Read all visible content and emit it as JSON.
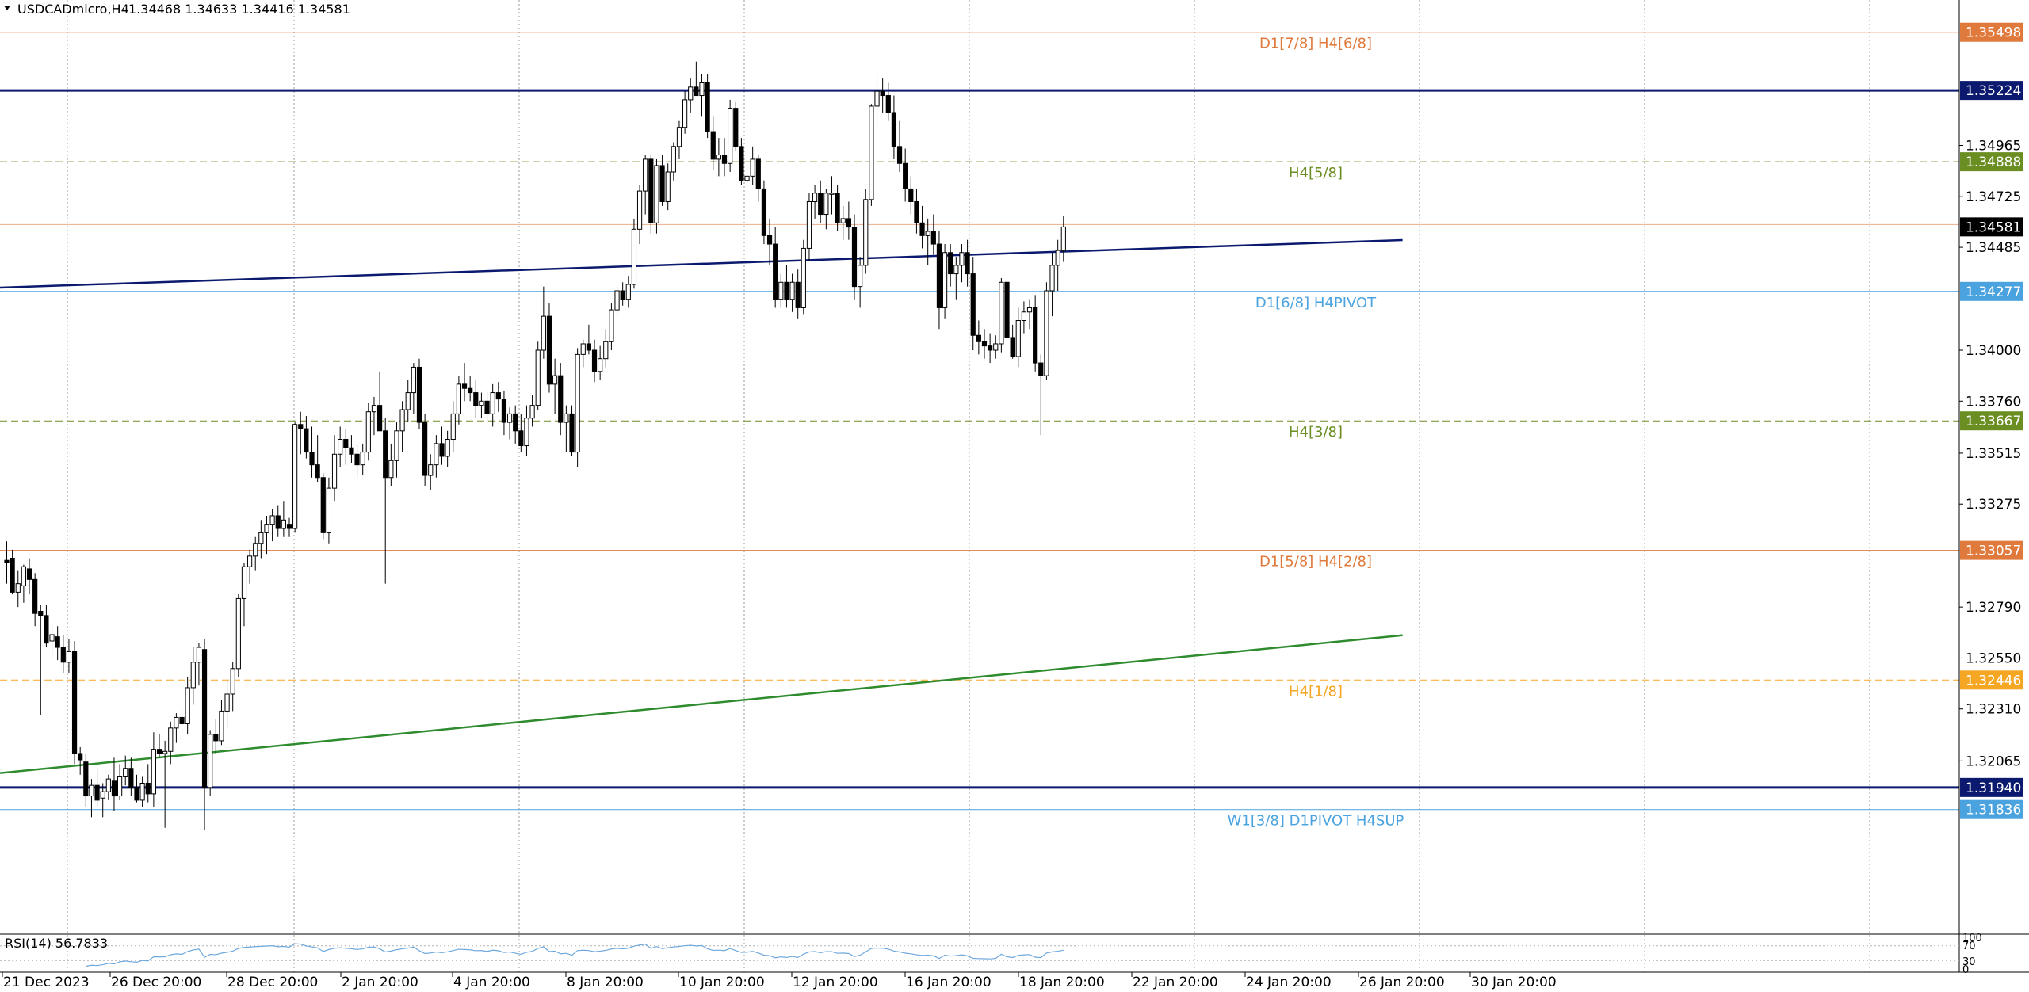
{
  "header": {
    "symbol_timeframe": "USDCADmicro,H4",
    "ohlc": "1.34468 1.34633 1.34416 1.34581"
  },
  "chart_data": {
    "type": "candlestick",
    "symbol": "USDCADmicro",
    "timeframe": "H4",
    "ylim": [
      1.3126,
      1.3565
    ],
    "price_ticks": [
      "1.34965",
      "1.34725",
      "1.34485",
      "1.34000",
      "1.33760",
      "1.33515",
      "1.33275",
      "1.32790",
      "1.32550",
      "1.32310",
      "1.32065"
    ],
    "x_labels": [
      "21 Dec 2023",
      "26 Dec 20:00",
      "28 Dec 20:00",
      "2 Jan 20:00",
      "4 Jan 20:00",
      "8 Jan 20:00",
      "10 Jan 20:00",
      "12 Jan 20:00",
      "16 Jan 20:00",
      "18 Jan 20:00",
      "22 Jan 20:00",
      "24 Jan 20:00",
      "26 Jan 20:00",
      "30 Jan 20:00"
    ],
    "level_lines": [
      {
        "price": 1.35498,
        "label": "1.35498",
        "text": "D1[7/8] H4[6/8]",
        "color": "#e07a3c",
        "style": "solid",
        "width": 1
      },
      {
        "price": 1.35224,
        "label": "1.35224",
        "text": "",
        "color": "#0b1a6e",
        "style": "solid",
        "width": 3
      },
      {
        "price": 1.34888,
        "label": "1.34888",
        "text": "H4[5/8]",
        "color": "#6b8e23",
        "style": "dashed",
        "width": 1
      },
      {
        "price": 1.34277,
        "label": "1.34277",
        "text": "D1[6/8] H4PIVOT",
        "color": "#4aa3df",
        "style": "solid",
        "width": 1
      },
      {
        "price": 1.33667,
        "label": "1.33667",
        "text": "H4[3/8]",
        "color": "#6b8e23",
        "style": "dashed",
        "width": 1
      },
      {
        "price": 1.33057,
        "label": "1.33057",
        "text": "D1[5/8] H4[2/8]",
        "color": "#e07a3c",
        "style": "solid",
        "width": 1
      },
      {
        "price": 1.32446,
        "label": "1.32446",
        "text": "H4[1/8]",
        "color": "#f5a623",
        "style": "dashed",
        "width": 1
      },
      {
        "price": 1.3194,
        "label": "1.31940",
        "text": "",
        "color": "#0b1a6e",
        "style": "solid",
        "width": 3
      },
      {
        "price": 1.31836,
        "label": "1.31836",
        "text": "W1[3/8] D1PIVOT H4SUP",
        "color": "#4aa3df",
        "style": "solid",
        "width": 1
      }
    ],
    "current_price": {
      "price": 1.34581,
      "label": "1.34581"
    },
    "trendlines": [
      {
        "name": "resistance",
        "color": "#0b1a6e",
        "p1": [
          0,
          1.34296
        ],
        "p2": [
          247,
          1.34519
        ]
      },
      {
        "name": "support",
        "color": "#2e8b2e",
        "p1": [
          0,
          1.32011
        ],
        "p2": [
          247,
          1.32657
        ]
      }
    ],
    "candles": [
      [
        1.3301,
        1.331,
        1.329,
        1.33
      ],
      [
        1.3302,
        1.3306,
        1.3285,
        1.3286
      ],
      [
        1.3286,
        1.3296,
        1.3279,
        1.329
      ],
      [
        1.3289,
        1.3299,
        1.3281,
        1.3298
      ],
      [
        1.3297,
        1.3302,
        1.3285,
        1.3292
      ],
      [
        1.3292,
        1.3295,
        1.327,
        1.3276
      ],
      [
        1.3277,
        1.328,
        1.3228,
        1.3275
      ],
      [
        1.3275,
        1.328,
        1.326,
        1.3262
      ],
      [
        1.3263,
        1.3271,
        1.3255,
        1.3266
      ],
      [
        1.3265,
        1.327,
        1.3254,
        1.326
      ],
      [
        1.326,
        1.3266,
        1.3248,
        1.3253
      ],
      [
        1.3253,
        1.3264,
        1.3248,
        1.3258
      ],
      [
        1.3258,
        1.3263,
        1.3205,
        1.321
      ],
      [
        1.321,
        1.3213,
        1.32,
        1.3207
      ],
      [
        1.3206,
        1.321,
        1.3185,
        1.319
      ],
      [
        1.319,
        1.3198,
        1.318,
        1.3195
      ],
      [
        1.3195,
        1.3203,
        1.3185,
        1.3188
      ],
      [
        1.3189,
        1.3196,
        1.318,
        1.3192
      ],
      [
        1.3192,
        1.32,
        1.3188,
        1.3198
      ],
      [
        1.3197,
        1.3208,
        1.3183,
        1.319
      ],
      [
        1.319,
        1.3205,
        1.3188,
        1.3199
      ],
      [
        1.3199,
        1.3209,
        1.3195,
        1.3203
      ],
      [
        1.3203,
        1.3208,
        1.319,
        1.3194
      ],
      [
        1.3194,
        1.32,
        1.3187,
        1.3188
      ],
      [
        1.3188,
        1.3199,
        1.3185,
        1.3196
      ],
      [
        1.3196,
        1.3205,
        1.3187,
        1.3191
      ],
      [
        1.3191,
        1.322,
        1.3185,
        1.3212
      ],
      [
        1.3212,
        1.3219,
        1.3208,
        1.321
      ],
      [
        1.321,
        1.3216,
        1.3175,
        1.3211
      ],
      [
        1.3211,
        1.3225,
        1.3205,
        1.3222
      ],
      [
        1.3222,
        1.3229,
        1.3215,
        1.3227
      ],
      [
        1.3227,
        1.3232,
        1.322,
        1.3224
      ],
      [
        1.3224,
        1.3246,
        1.3219,
        1.3241
      ],
      [
        1.3241,
        1.326,
        1.3233,
        1.3253
      ],
      [
        1.3253,
        1.3262,
        1.3242,
        1.326
      ],
      [
        1.3259,
        1.3264,
        1.3174,
        1.3194
      ],
      [
        1.3194,
        1.3221,
        1.319,
        1.3219
      ],
      [
        1.3219,
        1.3226,
        1.321,
        1.3216
      ],
      [
        1.3216,
        1.3235,
        1.3214,
        1.323
      ],
      [
        1.323,
        1.3245,
        1.3222,
        1.3238
      ],
      [
        1.3238,
        1.3253,
        1.323,
        1.325
      ],
      [
        1.325,
        1.3285,
        1.3246,
        1.3283
      ],
      [
        1.3283,
        1.33,
        1.327,
        1.3298
      ],
      [
        1.3298,
        1.3306,
        1.329,
        1.3303
      ],
      [
        1.3303,
        1.3312,
        1.3296,
        1.3309
      ],
      [
        1.3309,
        1.332,
        1.3302,
        1.3314
      ],
      [
        1.3314,
        1.3322,
        1.3304,
        1.3318
      ],
      [
        1.3318,
        1.3325,
        1.331,
        1.3322
      ],
      [
        1.3322,
        1.3327,
        1.3312,
        1.3316
      ],
      [
        1.3316,
        1.3329,
        1.3312,
        1.332
      ],
      [
        1.3318,
        1.3321,
        1.3312,
        1.3316
      ],
      [
        1.3316,
        1.3366,
        1.3314,
        1.3365
      ],
      [
        1.3365,
        1.3371,
        1.3351,
        1.3363
      ],
      [
        1.3363,
        1.3369,
        1.3349,
        1.3352
      ],
      [
        1.3352,
        1.3364,
        1.334,
        1.3346
      ],
      [
        1.3346,
        1.336,
        1.3338,
        1.334
      ],
      [
        1.334,
        1.3342,
        1.3311,
        1.3314
      ],
      [
        1.3314,
        1.334,
        1.3309,
        1.3335
      ],
      [
        1.3335,
        1.336,
        1.3329,
        1.3351
      ],
      [
        1.3351,
        1.3364,
        1.3345,
        1.3358
      ],
      [
        1.3358,
        1.3363,
        1.3346,
        1.3354
      ],
      [
        1.3354,
        1.336,
        1.3347,
        1.3351
      ],
      [
        1.3351,
        1.3356,
        1.334,
        1.3346
      ],
      [
        1.3346,
        1.3356,
        1.3341,
        1.3352
      ],
      [
        1.3352,
        1.3375,
        1.3348,
        1.3371
      ],
      [
        1.3371,
        1.3378,
        1.336,
        1.3374
      ],
      [
        1.3374,
        1.339,
        1.3366,
        1.3362
      ],
      [
        1.3362,
        1.3368,
        1.329,
        1.334
      ],
      [
        1.334,
        1.3356,
        1.3336,
        1.3348
      ],
      [
        1.3348,
        1.3366,
        1.334,
        1.3362
      ],
      [
        1.3362,
        1.3376,
        1.3352,
        1.3372
      ],
      [
        1.3372,
        1.3386,
        1.3366,
        1.338
      ],
      [
        1.338,
        1.3394,
        1.337,
        1.3392
      ],
      [
        1.3392,
        1.3396,
        1.3363,
        1.3366
      ],
      [
        1.3366,
        1.337,
        1.3336,
        1.3341
      ],
      [
        1.3341,
        1.3351,
        1.3334,
        1.3346
      ],
      [
        1.3346,
        1.336,
        1.334,
        1.3356
      ],
      [
        1.3356,
        1.3364,
        1.3346,
        1.335
      ],
      [
        1.335,
        1.3362,
        1.3345,
        1.3358
      ],
      [
        1.3358,
        1.3376,
        1.3352,
        1.337
      ],
      [
        1.337,
        1.3388,
        1.3365,
        1.3384
      ],
      [
        1.3384,
        1.3394,
        1.3376,
        1.3382
      ],
      [
        1.3382,
        1.3388,
        1.3376,
        1.338
      ],
      [
        1.338,
        1.3386,
        1.3368,
        1.3374
      ],
      [
        1.3374,
        1.338,
        1.3368,
        1.3376
      ],
      [
        1.3376,
        1.3381,
        1.3366,
        1.337
      ],
      [
        1.337,
        1.3384,
        1.3364,
        1.338
      ],
      [
        1.338,
        1.3385,
        1.3371,
        1.3377
      ],
      [
        1.3377,
        1.3381,
        1.336,
        1.3366
      ],
      [
        1.3366,
        1.3373,
        1.3358,
        1.337
      ],
      [
        1.337,
        1.3374,
        1.3356,
        1.3362
      ],
      [
        1.3362,
        1.337,
        1.3352,
        1.3355
      ],
      [
        1.3355,
        1.3374,
        1.335,
        1.3368
      ],
      [
        1.3368,
        1.3379,
        1.3364,
        1.3374
      ],
      [
        1.3374,
        1.3404,
        1.3372,
        1.34
      ],
      [
        1.34,
        1.343,
        1.3396,
        1.3416
      ],
      [
        1.3416,
        1.3422,
        1.338,
        1.3384
      ],
      [
        1.3384,
        1.3396,
        1.337,
        1.3388
      ],
      [
        1.3388,
        1.3394,
        1.336,
        1.3366
      ],
      [
        1.3366,
        1.3374,
        1.3352,
        1.337
      ],
      [
        1.337,
        1.3374,
        1.335,
        1.3352
      ],
      [
        1.3352,
        1.3401,
        1.3345,
        1.3398
      ],
      [
        1.3398,
        1.3405,
        1.3392,
        1.3403
      ],
      [
        1.3403,
        1.3412,
        1.3398,
        1.34
      ],
      [
        1.34,
        1.3405,
        1.3385,
        1.339
      ],
      [
        1.339,
        1.3402,
        1.3386,
        1.3396
      ],
      [
        1.3396,
        1.341,
        1.3392,
        1.3404
      ],
      [
        1.3404,
        1.3422,
        1.34,
        1.3419
      ],
      [
        1.3419,
        1.343,
        1.3416,
        1.3428
      ],
      [
        1.3428,
        1.3432,
        1.3421,
        1.3424
      ],
      [
        1.3424,
        1.3435,
        1.342,
        1.3431
      ],
      [
        1.3431,
        1.3462,
        1.3429,
        1.3457
      ],
      [
        1.3457,
        1.3478,
        1.345,
        1.3475
      ],
      [
        1.3475,
        1.3492,
        1.3464,
        1.349
      ],
      [
        1.349,
        1.3492,
        1.3455,
        1.346
      ],
      [
        1.346,
        1.349,
        1.3455,
        1.3487
      ],
      [
        1.3487,
        1.3492,
        1.3468,
        1.347
      ],
      [
        1.347,
        1.3488,
        1.3466,
        1.3484
      ],
      [
        1.3484,
        1.3498,
        1.348,
        1.3496
      ],
      [
        1.3496,
        1.3508,
        1.349,
        1.3505
      ],
      [
        1.3505,
        1.3522,
        1.3502,
        1.3518
      ],
      [
        1.3518,
        1.3528,
        1.3512,
        1.3524
      ],
      [
        1.3524,
        1.3536,
        1.352,
        1.352
      ],
      [
        1.352,
        1.353,
        1.351,
        1.3526
      ],
      [
        1.3526,
        1.353,
        1.35,
        1.3503
      ],
      [
        1.3503,
        1.351,
        1.3485,
        1.349
      ],
      [
        1.349,
        1.35,
        1.3482,
        1.3492
      ],
      [
        1.3492,
        1.35,
        1.3482,
        1.3488
      ],
      [
        1.3488,
        1.3518,
        1.3484,
        1.3514
      ],
      [
        1.3514,
        1.3517,
        1.3494,
        1.3496
      ],
      [
        1.3496,
        1.35,
        1.3478,
        1.348
      ],
      [
        1.348,
        1.3488,
        1.3476,
        1.3482
      ],
      [
        1.3482,
        1.3496,
        1.3478,
        1.349
      ],
      [
        1.349,
        1.3492,
        1.347,
        1.3476
      ],
      [
        1.3476,
        1.348,
        1.345,
        1.3454
      ],
      [
        1.3454,
        1.3462,
        1.344,
        1.345
      ],
      [
        1.345,
        1.3458,
        1.342,
        1.3424
      ],
      [
        1.3424,
        1.3436,
        1.342,
        1.3432
      ],
      [
        1.3432,
        1.344,
        1.342,
        1.3424
      ],
      [
        1.3424,
        1.3436,
        1.3418,
        1.3432
      ],
      [
        1.3432,
        1.3438,
        1.3415,
        1.342
      ],
      [
        1.342,
        1.3452,
        1.3417,
        1.3448
      ],
      [
        1.3448,
        1.3474,
        1.3442,
        1.347
      ],
      [
        1.347,
        1.3478,
        1.3462,
        1.3474
      ],
      [
        1.3474,
        1.348,
        1.346,
        1.3464
      ],
      [
        1.3464,
        1.3476,
        1.3457,
        1.3474
      ],
      [
        1.3474,
        1.3482,
        1.3464,
        1.3474
      ],
      [
        1.3474,
        1.3478,
        1.3456,
        1.346
      ],
      [
        1.346,
        1.3468,
        1.3452,
        1.3462
      ],
      [
        1.3462,
        1.347,
        1.3452,
        1.3458
      ],
      [
        1.3458,
        1.3464,
        1.3424,
        1.343
      ],
      [
        1.343,
        1.3444,
        1.342,
        1.344
      ],
      [
        1.344,
        1.3476,
        1.3436,
        1.3471
      ],
      [
        1.3471,
        1.3516,
        1.3468,
        1.3515
      ],
      [
        1.3515,
        1.353,
        1.3505,
        1.3522
      ],
      [
        1.3522,
        1.3528,
        1.3512,
        1.352
      ],
      [
        1.352,
        1.3526,
        1.3508,
        1.3512
      ],
      [
        1.3512,
        1.352,
        1.349,
        1.3496
      ],
      [
        1.3496,
        1.3508,
        1.3484,
        1.3488
      ],
      [
        1.3488,
        1.3495,
        1.347,
        1.3476
      ],
      [
        1.3476,
        1.3482,
        1.3464,
        1.347
      ],
      [
        1.347,
        1.3476,
        1.3455,
        1.346
      ],
      [
        1.346,
        1.3468,
        1.3448,
        1.3454
      ],
      [
        1.3454,
        1.3462,
        1.344,
        1.3456
      ],
      [
        1.3456,
        1.3464,
        1.3445,
        1.345
      ],
      [
        1.345,
        1.3456,
        1.341,
        1.342
      ],
      [
        1.342,
        1.345,
        1.3415,
        1.3446
      ],
      [
        1.3446,
        1.345,
        1.343,
        1.3436
      ],
      [
        1.3436,
        1.3444,
        1.3424,
        1.344
      ],
      [
        1.344,
        1.345,
        1.3432,
        1.3446
      ],
      [
        1.3446,
        1.3452,
        1.343,
        1.3436
      ],
      [
        1.3436,
        1.3444,
        1.34,
        1.3407
      ],
      [
        1.3407,
        1.3414,
        1.3398,
        1.3404
      ],
      [
        1.3404,
        1.341,
        1.3396,
        1.3402
      ],
      [
        1.3402,
        1.3408,
        1.3394,
        1.34
      ],
      [
        1.34,
        1.3407,
        1.3396,
        1.3403
      ],
      [
        1.3403,
        1.3434,
        1.3399,
        1.3432
      ],
      [
        1.3432,
        1.3436,
        1.34,
        1.3406
      ],
      [
        1.3406,
        1.3412,
        1.3396,
        1.3397
      ],
      [
        1.3397,
        1.342,
        1.3392,
        1.3414
      ],
      [
        1.3414,
        1.3423,
        1.3408,
        1.3418
      ],
      [
        1.3418,
        1.3424,
        1.341,
        1.342
      ],
      [
        1.342,
        1.3426,
        1.339,
        1.3394
      ],
      [
        1.3394,
        1.3398,
        1.336,
        1.3388
      ],
      [
        1.3388,
        1.3432,
        1.3386,
        1.3428
      ],
      [
        1.3428,
        1.3446,
        1.3416,
        1.344
      ],
      [
        1.344,
        1.3452,
        1.3428,
        1.3447
      ],
      [
        1.34468,
        1.34633,
        1.34416,
        1.34581
      ]
    ],
    "indicator": {
      "name": "RSI(14)",
      "value": 56.7833,
      "label": "RSI(14) 56.7833",
      "levels": [
        70,
        30
      ],
      "scale_labels": [
        "100",
        "70",
        "30",
        "0"
      ]
    }
  }
}
